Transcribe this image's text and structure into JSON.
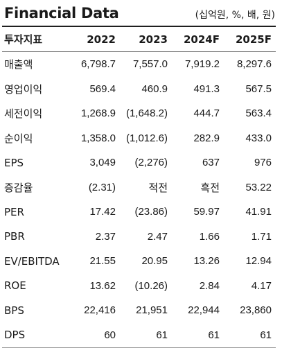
{
  "header": {
    "title": "Financial Data",
    "units": "(십억원, %, 배, 원)"
  },
  "table": {
    "columns": [
      "투자지표",
      "2022",
      "2023",
      "2024F",
      "2025F"
    ],
    "rows": [
      {
        "label": "매출액",
        "values": [
          "6,798.7",
          "7,557.0",
          "7,919.2",
          "8,297.6"
        ]
      },
      {
        "label": "영업이익",
        "values": [
          "569.4",
          "460.9",
          "491.3",
          "567.5"
        ]
      },
      {
        "label": "세전이익",
        "values": [
          "1,268.9",
          "(1,648.2)",
          "444.7",
          "563.4"
        ]
      },
      {
        "label": "순이익",
        "values": [
          "1,358.0",
          "(1,012.6)",
          "282.9",
          "433.0"
        ]
      },
      {
        "label": "EPS",
        "values": [
          "3,049",
          "(2,276)",
          "637",
          "976"
        ]
      },
      {
        "label": "증감율",
        "values": [
          "(2.31)",
          "적전",
          "흑전",
          "53.22"
        ]
      },
      {
        "label": "PER",
        "values": [
          "17.42",
          "(23.86)",
          "59.97",
          "41.91"
        ]
      },
      {
        "label": "PBR",
        "values": [
          "2.37",
          "2.47",
          "1.66",
          "1.71"
        ]
      },
      {
        "label": "EV/EBITDA",
        "values": [
          "21.55",
          "20.95",
          "13.26",
          "12.94"
        ]
      },
      {
        "label": "ROE",
        "values": [
          "13.62",
          "(10.26)",
          "2.84",
          "4.17"
        ]
      },
      {
        "label": "BPS",
        "values": [
          "22,416",
          "21,951",
          "22,944",
          "23,860"
        ]
      },
      {
        "label": "DPS",
        "values": [
          "60",
          "61",
          "61",
          "61"
        ]
      }
    ]
  }
}
